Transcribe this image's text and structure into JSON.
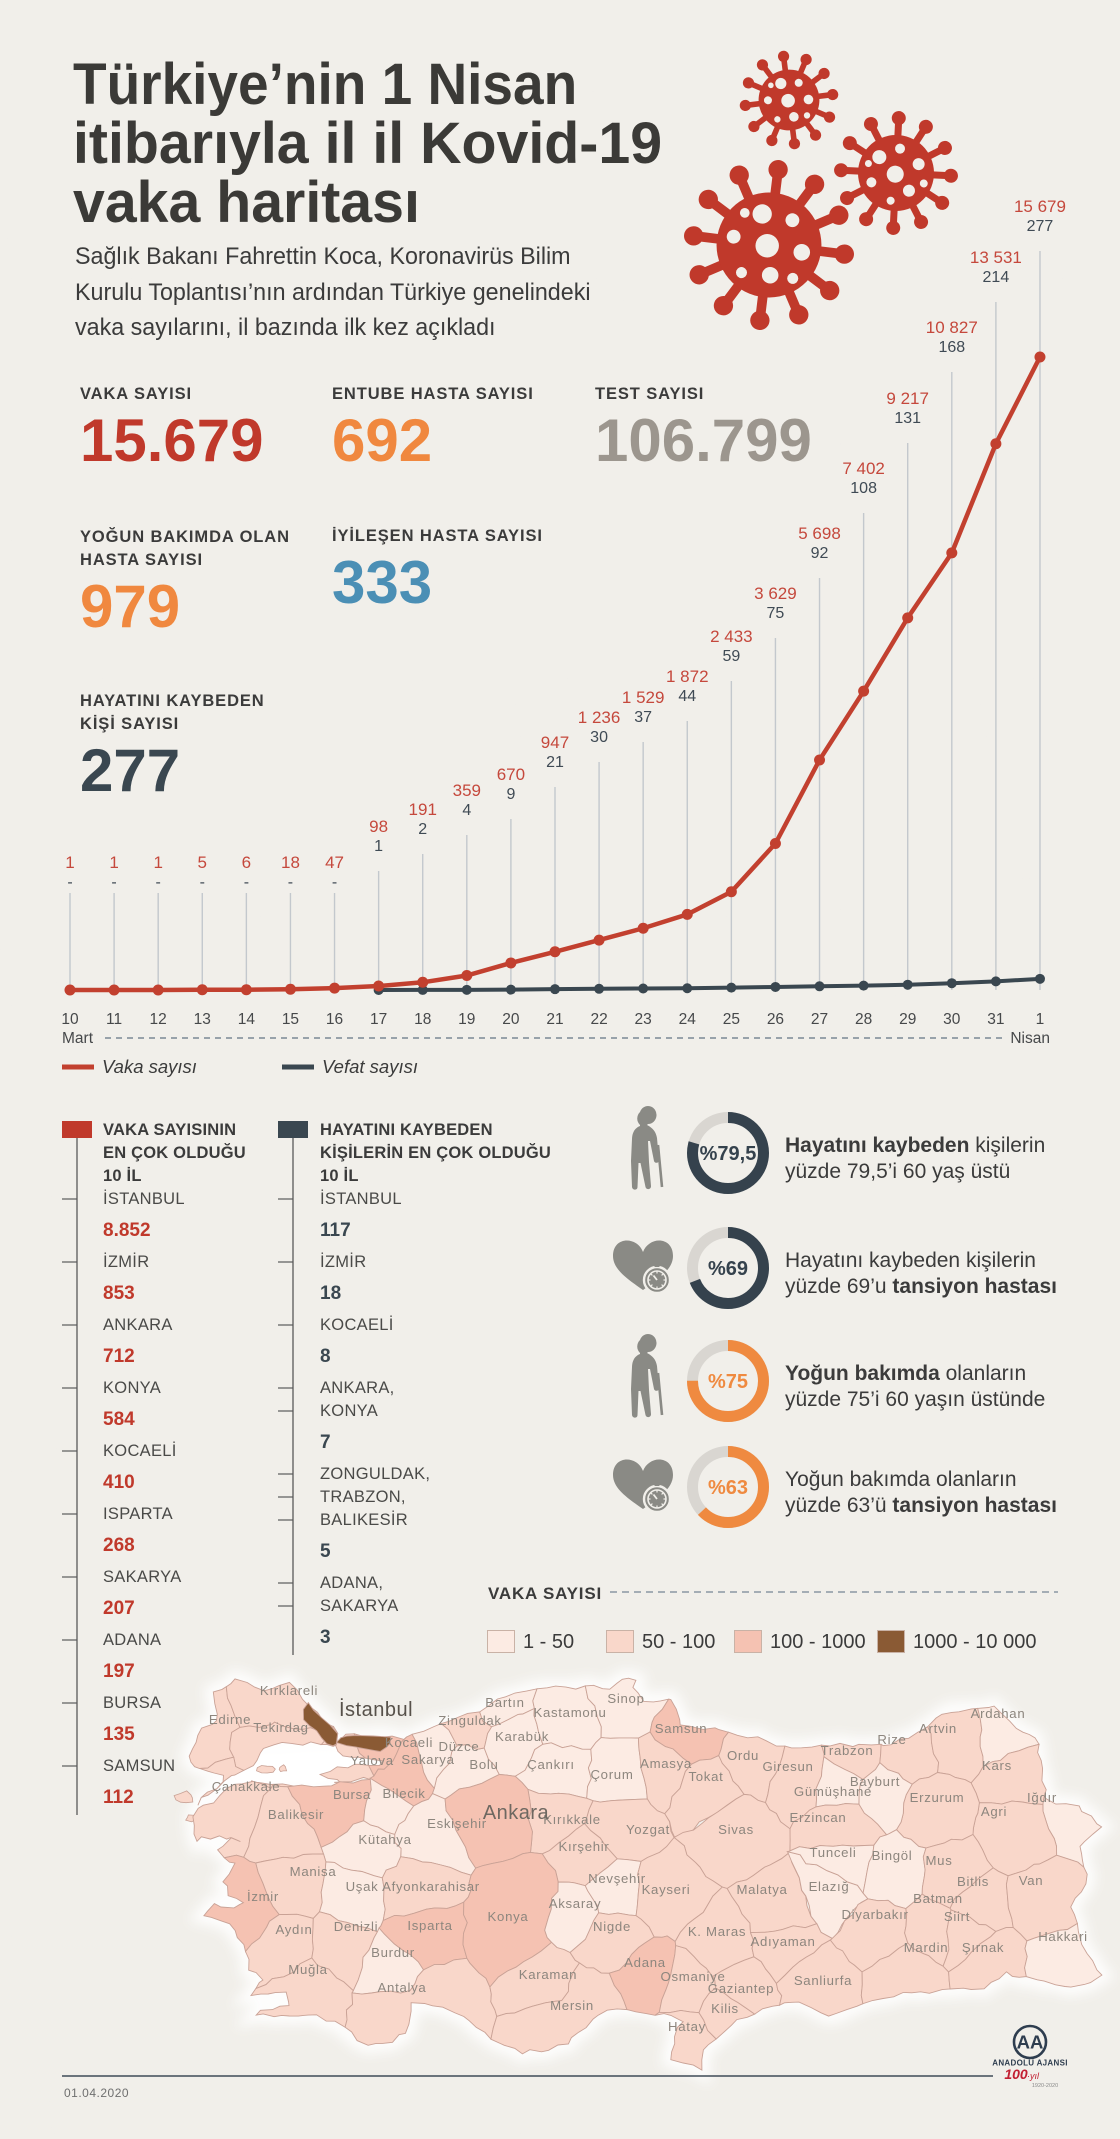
{
  "header": {
    "title_lines": [
      "Türkiye’nin 1 Nisan",
      "itibarıyla il il Kovid-19",
      "vaka haritası"
    ],
    "subtitle_lines": [
      "Sağlık Bakanı Fahrettin Koca, Koronavirüs Bilim",
      "Kurulu Toplantısı’nın ardından Türkiye genelindeki",
      "vaka sayılarını, il bazında ilk kez açıkladı"
    ]
  },
  "stats": [
    {
      "label_lines": [
        "VAKA SAYISI"
      ],
      "value": "15.679",
      "color": "#c0392b"
    },
    {
      "label_lines": [
        "ENTUBE HASTA SAYISI"
      ],
      "value": "692",
      "color": "#f0883f"
    },
    {
      "label_lines": [
        "TEST SAYISI"
      ],
      "value": "106.799",
      "color": "#9c968e"
    },
    {
      "label_lines": [
        "YOĞUN BAKIMDA OLAN",
        "HASTA SAYISI"
      ],
      "value": "979",
      "color": "#f0883f"
    },
    {
      "label_lines": [
        "İYİLEŞEN HASTA SAYISI"
      ],
      "value": "333",
      "color": "#4b8fb5"
    },
    {
      "label_lines": [
        "HAYATINI KAYBEDEN",
        "KİŞİ SAYISI"
      ],
      "value": "277",
      "color": "#3a4750"
    }
  ],
  "chart_data": {
    "type": "line",
    "x": [
      "10",
      "11",
      "12",
      "13",
      "14",
      "15",
      "16",
      "17",
      "18",
      "19",
      "20",
      "21",
      "22",
      "23",
      "24",
      "25",
      "26",
      "27",
      "28",
      "29",
      "30",
      "31",
      "1"
    ],
    "month_first": "Mart",
    "month_last": "Nisan",
    "ylim": [
      0,
      15679
    ],
    "series": [
      {
        "name": "Vaka sayısı",
        "color": "#c2402f",
        "values": [
          1,
          1,
          1,
          5,
          6,
          18,
          47,
          98,
          191,
          359,
          670,
          947,
          1236,
          1529,
          1872,
          2433,
          3629,
          5698,
          7402,
          9217,
          10827,
          13531,
          15679
        ],
        "labels": [
          "1",
          "1",
          "1",
          "5",
          "6",
          "18",
          "47",
          "98",
          "191",
          "359",
          "670",
          "947",
          "1 236",
          "1 529",
          "1 872",
          "2 433",
          "3 629",
          "5 698",
          "7 402",
          "9 217",
          "10 827",
          "13 531",
          "15 679"
        ]
      },
      {
        "name": "Vefat sayısı",
        "color": "#3a4750",
        "values": [
          null,
          null,
          null,
          null,
          null,
          null,
          null,
          1,
          2,
          4,
          9,
          21,
          30,
          37,
          44,
          59,
          75,
          92,
          108,
          131,
          168,
          214,
          277
        ],
        "labels": [
          "-",
          "-",
          "-",
          "-",
          "-",
          "-",
          "-",
          "1",
          "2",
          "4",
          "9",
          "21",
          "30",
          "37",
          "44",
          "59",
          "75",
          "92",
          "108",
          "131",
          "168",
          "214",
          "277"
        ]
      }
    ]
  },
  "lists": [
    {
      "header_lines": [
        "VAKA SAYISININ",
        "EN ÇOK OLDUĞU",
        "10 İL"
      ],
      "color": "#c0392b",
      "items": [
        {
          "name_lines": [
            "İSTANBUL"
          ],
          "value": "8.852"
        },
        {
          "name_lines": [
            "İZMİR"
          ],
          "value": "853"
        },
        {
          "name_lines": [
            "ANKARA"
          ],
          "value": "712"
        },
        {
          "name_lines": [
            "KONYA"
          ],
          "value": "584"
        },
        {
          "name_lines": [
            "KOCAELİ"
          ],
          "value": "410"
        },
        {
          "name_lines": [
            "ISPARTA"
          ],
          "value": "268"
        },
        {
          "name_lines": [
            "SAKARYA"
          ],
          "value": "207"
        },
        {
          "name_lines": [
            "ADANA"
          ],
          "value": "197"
        },
        {
          "name_lines": [
            "BURSA"
          ],
          "value": "135"
        },
        {
          "name_lines": [
            "SAMSUN"
          ],
          "value": "112"
        }
      ]
    },
    {
      "header_lines": [
        "HAYATINI KAYBEDEN",
        "KİŞİLERİN EN ÇOK OLDUĞU",
        "10 İL"
      ],
      "color": "#3a4750",
      "items": [
        {
          "name_lines": [
            "İSTANBUL"
          ],
          "value": "117"
        },
        {
          "name_lines": [
            "İZMİR"
          ],
          "value": "18"
        },
        {
          "name_lines": [
            "KOCAELİ"
          ],
          "value": "8"
        },
        {
          "name_lines": [
            "ANKARA,",
            "KONYA"
          ],
          "value": "7"
        },
        {
          "name_lines": [
            "ZONGULDAK,",
            "TRABZON,",
            "BALIKESİR"
          ],
          "value": "5"
        },
        {
          "name_lines": [
            "ADANA,",
            "SAKARYA"
          ],
          "value": "3"
        }
      ]
    }
  ],
  "donuts": [
    {
      "pct": 79.5,
      "pct_label": "%79,5",
      "color": "#35424d",
      "icon": "elderly-icon",
      "line1": [
        [
          "Hayatını kaybeden",
          true
        ],
        [
          " kişilerin",
          false
        ]
      ],
      "line2": [
        [
          "yüzde 79,5’i 60 yaş üstü",
          false
        ]
      ]
    },
    {
      "pct": 69,
      "pct_label": "%69",
      "color": "#35424d",
      "icon": "heart-pressure-icon",
      "line1": [
        [
          "Hayatını kaybeden kişilerin",
          false
        ]
      ],
      "line2": [
        [
          "yüzde 69’u ",
          false
        ],
        [
          "tansiyon hastası",
          true
        ]
      ]
    },
    {
      "pct": 75,
      "pct_label": "%75",
      "color": "#ef8a40",
      "icon": "elderly-icon",
      "line1": [
        [
          "Yoğun bakımda",
          true
        ],
        [
          " olanların",
          false
        ]
      ],
      "line2": [
        [
          "yüzde 75’i 60 yaşın üstünde",
          false
        ]
      ]
    },
    {
      "pct": 63,
      "pct_label": "%63",
      "color": "#ef8a40",
      "icon": "heart-pressure-icon",
      "line1": [
        [
          "Yoğun bakımda olanların",
          false
        ]
      ],
      "line2": [
        [
          "yüzde 63’ü ",
          false
        ],
        [
          "tansiyon hastası",
          true
        ]
      ]
    }
  ],
  "map": {
    "legend_title": "VAKA SAYISI",
    "buckets": [
      {
        "label": "1 - 50",
        "color": "#fcebe3"
      },
      {
        "label": "50 - 100",
        "color": "#f9d7ca"
      },
      {
        "label": "100 - 1000",
        "color": "#f5c2b2"
      },
      {
        "label": "1000 - 10 000",
        "color": "#8a5a34"
      }
    ],
    "provinces": [
      {
        "label": "Edirne",
        "bucket": 2
      },
      {
        "label": "Kırklareli",
        "bucket": 2
      },
      {
        "label": "Tekirdag",
        "bucket": 2
      },
      {
        "label": "İstanbul",
        "bucket": 4
      },
      {
        "label": "Kocaeli",
        "bucket": 3
      },
      {
        "label": "Yalova",
        "bucket": 2
      },
      {
        "label": "Sakarya",
        "bucket": 3
      },
      {
        "label": "Bolu",
        "bucket": 1
      },
      {
        "label": "Düzce",
        "bucket": 1
      },
      {
        "label": "Zinguldak",
        "bucket": 2
      },
      {
        "label": "Bartın",
        "bucket": 1
      },
      {
        "label": "Karabük",
        "bucket": 1
      },
      {
        "label": "Kastamonu",
        "bucket": 1
      },
      {
        "label": "Sinop",
        "bucket": 1
      },
      {
        "label": "Samsun",
        "bucket": 3
      },
      {
        "label": "Çankırı",
        "bucket": 1
      },
      {
        "label": "Çorum",
        "bucket": 1
      },
      {
        "label": "Amasya",
        "bucket": 2
      },
      {
        "label": "Tokat",
        "bucket": 2
      },
      {
        "label": "Ordu",
        "bucket": 2
      },
      {
        "label": "Giresun",
        "bucket": 2
      },
      {
        "label": "Trabzon",
        "bucket": 2
      },
      {
        "label": "Rize",
        "bucket": 2
      },
      {
        "label": "Artvin",
        "bucket": 2
      },
      {
        "label": "Ardahan",
        "bucket": 1
      },
      {
        "label": "Kars",
        "bucket": 2
      },
      {
        "label": "Iğdır",
        "bucket": 1
      },
      {
        "label": "Agri",
        "bucket": 2
      },
      {
        "label": "Erzurum",
        "bucket": 2
      },
      {
        "label": "Bayburt",
        "bucket": 1
      },
      {
        "label": "Gümüşhane",
        "bucket": 1
      },
      {
        "label": "Erzincan",
        "bucket": 2
      },
      {
        "label": "Sivas",
        "bucket": 2
      },
      {
        "label": "Yozgat",
        "bucket": 2
      },
      {
        "label": "Kırşehir",
        "bucket": 2
      },
      {
        "label": "Kırıkkale",
        "bucket": 2
      },
      {
        "label": "Çanakkale",
        "bucket": 2
      },
      {
        "label": "Balikesir",
        "bucket": 2
      },
      {
        "label": "Bursa",
        "bucket": 3
      },
      {
        "label": "Bilecik",
        "bucket": 1
      },
      {
        "label": "Eskişehir",
        "bucket": 1
      },
      {
        "label": "Kütahya",
        "bucket": 1
      },
      {
        "label": "Manisa",
        "bucket": 2
      },
      {
        "label": "İzmir",
        "bucket": 3
      },
      {
        "label": "Uşak",
        "bucket": 1
      },
      {
        "label": "Afyonkarahisar",
        "bucket": 2
      },
      {
        "label": "Ankara",
        "bucket": 3
      },
      {
        "label": "Aydın",
        "bucket": 2
      },
      {
        "label": "Denizli",
        "bucket": 2
      },
      {
        "label": "Isparta",
        "bucket": 3
      },
      {
        "label": "Burdur",
        "bucket": 1
      },
      {
        "label": "Muğla",
        "bucket": 2
      },
      {
        "label": "Antalya",
        "bucket": 2
      },
      {
        "label": "Konya",
        "bucket": 3
      },
      {
        "label": "Karaman",
        "bucket": 2
      },
      {
        "label": "Mersin",
        "bucket": 2
      },
      {
        "label": "Aksaray",
        "bucket": 1
      },
      {
        "label": "Nevşehir",
        "bucket": 1
      },
      {
        "label": "Nigde",
        "bucket": 2
      },
      {
        "label": "Kayseri",
        "bucket": 2
      },
      {
        "label": "Adana",
        "bucket": 3
      },
      {
        "label": "Osmaniye",
        "bucket": 2
      },
      {
        "label": "Hatay",
        "bucket": 2
      },
      {
        "label": "K. Maras",
        "bucket": 2
      },
      {
        "label": "Kilis",
        "bucket": 2
      },
      {
        "label": "Gaziantep",
        "bucket": 2
      },
      {
        "label": "Malatya",
        "bucket": 2
      },
      {
        "label": "Elazığ",
        "bucket": 1
      },
      {
        "label": "Tunceli",
        "bucket": 1
      },
      {
        "label": "Bingöl",
        "bucket": 1
      },
      {
        "label": "Mus",
        "bucket": 2
      },
      {
        "label": "Bitlis",
        "bucket": 2
      },
      {
        "label": "Van",
        "bucket": 2
      },
      {
        "label": "Adıyaman",
        "bucket": 2
      },
      {
        "label": "Sanliurfa",
        "bucket": 2
      },
      {
        "label": "Diyarbakır",
        "bucket": 2
      },
      {
        "label": "Batman",
        "bucket": 2
      },
      {
        "label": "Mardin",
        "bucket": 2
      },
      {
        "label": "Siirt",
        "bucket": 2
      },
      {
        "label": "Şırnak",
        "bucket": 2
      },
      {
        "label": "Hakkari",
        "bucket": 1
      }
    ]
  },
  "footer": {
    "date": "01.04.2020",
    "logo_monogram": "AA",
    "agency": "ANADOLU AJANSI",
    "centennial": "100",
    "yil": "·yıl",
    "years": "1920-2020"
  }
}
